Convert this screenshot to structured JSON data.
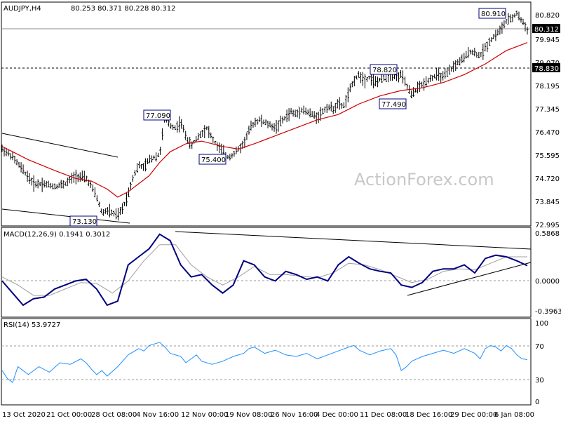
{
  "header": {
    "symbol": "AUDJPY,H4",
    "ohlc": "80.253 80.371 80.228 80.312",
    "macd_label": "MACD(12,26,9) 0.1941 0.3012",
    "rsi_label": "RSI(14) 53.9727"
  },
  "watermark": "ActionForex.com",
  "colors": {
    "bars": "#000000",
    "ma": "#cc0000",
    "macd": "#000080",
    "signal": "#a0a0a0",
    "rsi": "#1e90ff",
    "annotation_border": "#000080"
  },
  "chart_data": [
    {
      "type": "ohlc",
      "title": "AUDJPY,H4",
      "price_ticks": [
        "80.820",
        "79.945",
        "79.070",
        "78.195",
        "77.345",
        "76.470",
        "75.595",
        "74.720",
        "73.845",
        "72.995"
      ],
      "ylim": [
        72.995,
        80.82
      ],
      "current_price": "80.312",
      "level_line": "78.830",
      "annotations": [
        {
          "label": "80.910",
          "price": 80.91
        },
        {
          "label": "78.820",
          "price": 78.82
        },
        {
          "label": "77.490",
          "price": 77.49
        },
        {
          "label": "77.090",
          "price": 77.09
        },
        {
          "label": "75.400",
          "price": 75.4
        },
        {
          "label": "73.130",
          "price": 73.13
        }
      ],
      "path": [
        [
          0,
          75.8
        ],
        [
          0.02,
          75.5
        ],
        [
          0.04,
          75.0
        ],
        [
          0.06,
          74.5
        ],
        [
          0.08,
          74.5
        ],
        [
          0.1,
          74.4
        ],
        [
          0.12,
          74.5
        ],
        [
          0.14,
          74.8
        ],
        [
          0.16,
          74.7
        ],
        [
          0.17,
          74.4
        ],
        [
          0.18,
          74.0
        ],
        [
          0.19,
          73.4
        ],
        [
          0.2,
          73.5
        ],
        [
          0.22,
          73.3
        ],
        [
          0.23,
          73.6
        ],
        [
          0.24,
          74.1
        ],
        [
          0.25,
          74.8
        ],
        [
          0.26,
          75.2
        ],
        [
          0.27,
          75.1
        ],
        [
          0.28,
          75.4
        ],
        [
          0.29,
          75.5
        ],
        [
          0.3,
          75.6
        ],
        [
          0.305,
          76.3
        ],
        [
          0.31,
          77.0
        ],
        [
          0.32,
          76.7
        ],
        [
          0.33,
          76.6
        ],
        [
          0.34,
          76.8
        ],
        [
          0.35,
          76.3
        ],
        [
          0.36,
          75.9
        ],
        [
          0.37,
          76.2
        ],
        [
          0.38,
          76.4
        ],
        [
          0.39,
          76.6
        ],
        [
          0.4,
          76.2
        ],
        [
          0.41,
          75.9
        ],
        [
          0.42,
          75.7
        ],
        [
          0.43,
          75.5
        ],
        [
          0.44,
          75.6
        ],
        [
          0.45,
          75.8
        ],
        [
          0.46,
          76.0
        ],
        [
          0.47,
          76.5
        ],
        [
          0.48,
          76.8
        ],
        [
          0.49,
          76.9
        ],
        [
          0.5,
          76.8
        ],
        [
          0.51,
          76.7
        ],
        [
          0.52,
          76.6
        ],
        [
          0.53,
          76.8
        ],
        [
          0.54,
          77.0
        ],
        [
          0.55,
          77.2
        ],
        [
          0.56,
          77.1
        ],
        [
          0.57,
          77.3
        ],
        [
          0.58,
          77.2
        ],
        [
          0.59,
          77.1
        ],
        [
          0.6,
          77.0
        ],
        [
          0.61,
          77.2
        ],
        [
          0.62,
          77.4
        ],
        [
          0.63,
          77.3
        ],
        [
          0.64,
          77.5
        ],
        [
          0.65,
          77.4
        ],
        [
          0.66,
          77.9
        ],
        [
          0.67,
          78.4
        ],
        [
          0.68,
          78.6
        ],
        [
          0.69,
          78.4
        ],
        [
          0.7,
          78.5
        ],
        [
          0.71,
          78.3
        ],
        [
          0.72,
          78.4
        ],
        [
          0.73,
          78.5
        ],
        [
          0.74,
          78.6
        ],
        [
          0.75,
          78.5
        ],
        [
          0.76,
          78.6
        ],
        [
          0.77,
          78.2
        ],
        [
          0.78,
          77.8
        ],
        [
          0.79,
          78.1
        ],
        [
          0.8,
          78.2
        ],
        [
          0.81,
          78.4
        ],
        [
          0.82,
          78.5
        ],
        [
          0.83,
          78.6
        ],
        [
          0.84,
          78.5
        ],
        [
          0.85,
          78.7
        ],
        [
          0.86,
          78.9
        ],
        [
          0.87,
          79.1
        ],
        [
          0.88,
          79.2
        ],
        [
          0.89,
          79.5
        ],
        [
          0.9,
          79.4
        ],
        [
          0.91,
          79.3
        ],
        [
          0.92,
          79.6
        ],
        [
          0.93,
          79.9
        ],
        [
          0.94,
          80.1
        ],
        [
          0.95,
          80.3
        ],
        [
          0.96,
          80.6
        ],
        [
          0.97,
          80.7
        ],
        [
          0.98,
          80.9
        ],
        [
          0.99,
          80.6
        ],
        [
          1.0,
          80.3
        ]
      ],
      "ma": [
        [
          0,
          75.9
        ],
        [
          0.05,
          75.4
        ],
        [
          0.1,
          75.0
        ],
        [
          0.14,
          74.7
        ],
        [
          0.17,
          74.6
        ],
        [
          0.2,
          74.3
        ],
        [
          0.22,
          74.0
        ],
        [
          0.24,
          74.2
        ],
        [
          0.26,
          74.5
        ],
        [
          0.28,
          74.8
        ],
        [
          0.3,
          75.3
        ],
        [
          0.32,
          75.7
        ],
        [
          0.35,
          76.0
        ],
        [
          0.38,
          76.1
        ],
        [
          0.42,
          75.9
        ],
        [
          0.45,
          75.8
        ],
        [
          0.48,
          76.0
        ],
        [
          0.52,
          76.3
        ],
        [
          0.56,
          76.6
        ],
        [
          0.6,
          76.9
        ],
        [
          0.64,
          77.1
        ],
        [
          0.68,
          77.5
        ],
        [
          0.72,
          77.8
        ],
        [
          0.76,
          78.0
        ],
        [
          0.8,
          78.1
        ],
        [
          0.84,
          78.3
        ],
        [
          0.88,
          78.6
        ],
        [
          0.92,
          79.0
        ],
        [
          0.96,
          79.5
        ],
        [
          1.0,
          79.8
        ]
      ]
    },
    {
      "type": "line",
      "title": "MACD(12,26,9) 0.1941 0.3012",
      "y_ticks": [
        "0.5868",
        "0.0000",
        "-0.3963"
      ],
      "ylim": [
        -0.3963,
        0.5868
      ],
      "series": [
        {
          "name": "MACD",
          "values": [
            [
              0,
              0.0
            ],
            [
              0.02,
              -0.15
            ],
            [
              0.04,
              -0.3
            ],
            [
              0.06,
              -0.22
            ],
            [
              0.08,
              -0.2
            ],
            [
              0.1,
              -0.1
            ],
            [
              0.12,
              -0.05
            ],
            [
              0.14,
              0.0
            ],
            [
              0.16,
              0.02
            ],
            [
              0.18,
              -0.1
            ],
            [
              0.2,
              -0.3
            ],
            [
              0.22,
              -0.25
            ],
            [
              0.24,
              0.2
            ],
            [
              0.26,
              0.3
            ],
            [
              0.28,
              0.4
            ],
            [
              0.3,
              0.58
            ],
            [
              0.32,
              0.5
            ],
            [
              0.34,
              0.2
            ],
            [
              0.36,
              0.05
            ],
            [
              0.38,
              0.08
            ],
            [
              0.4,
              -0.05
            ],
            [
              0.42,
              -0.15
            ],
            [
              0.44,
              -0.05
            ],
            [
              0.46,
              0.25
            ],
            [
              0.48,
              0.2
            ],
            [
              0.5,
              0.05
            ],
            [
              0.52,
              0.0
            ],
            [
              0.54,
              0.12
            ],
            [
              0.56,
              0.08
            ],
            [
              0.58,
              0.02
            ],
            [
              0.6,
              0.05
            ],
            [
              0.62,
              0.0
            ],
            [
              0.64,
              0.2
            ],
            [
              0.66,
              0.3
            ],
            [
              0.68,
              0.22
            ],
            [
              0.7,
              0.15
            ],
            [
              0.72,
              0.12
            ],
            [
              0.74,
              0.1
            ],
            [
              0.76,
              -0.05
            ],
            [
              0.78,
              -0.08
            ],
            [
              0.8,
              -0.02
            ],
            [
              0.82,
              0.12
            ],
            [
              0.84,
              0.15
            ],
            [
              0.86,
              0.15
            ],
            [
              0.88,
              0.2
            ],
            [
              0.9,
              0.1
            ],
            [
              0.92,
              0.28
            ],
            [
              0.94,
              0.32
            ],
            [
              0.96,
              0.3
            ],
            [
              0.98,
              0.25
            ],
            [
              1.0,
              0.19
            ]
          ]
        },
        {
          "name": "Signal",
          "values": [
            [
              0,
              0.05
            ],
            [
              0.03,
              -0.05
            ],
            [
              0.06,
              -0.18
            ],
            [
              0.09,
              -0.18
            ],
            [
              0.12,
              -0.1
            ],
            [
              0.15,
              -0.02
            ],
            [
              0.18,
              -0.03
            ],
            [
              0.21,
              -0.15
            ],
            [
              0.24,
              0.0
            ],
            [
              0.27,
              0.25
            ],
            [
              0.3,
              0.45
            ],
            [
              0.33,
              0.45
            ],
            [
              0.36,
              0.2
            ],
            [
              0.39,
              0.05
            ],
            [
              0.42,
              -0.05
            ],
            [
              0.45,
              0.05
            ],
            [
              0.48,
              0.18
            ],
            [
              0.51,
              0.08
            ],
            [
              0.54,
              0.08
            ],
            [
              0.57,
              0.06
            ],
            [
              0.6,
              0.04
            ],
            [
              0.63,
              0.1
            ],
            [
              0.66,
              0.22
            ],
            [
              0.69,
              0.2
            ],
            [
              0.72,
              0.14
            ],
            [
              0.75,
              0.06
            ],
            [
              0.78,
              -0.02
            ],
            [
              0.81,
              0.02
            ],
            [
              0.84,
              0.12
            ],
            [
              0.87,
              0.15
            ],
            [
              0.9,
              0.14
            ],
            [
              0.93,
              0.22
            ],
            [
              0.96,
              0.3
            ],
            [
              1.0,
              0.3
            ]
          ]
        }
      ]
    },
    {
      "type": "line",
      "title": "RSI(14) 53.9727",
      "y_ticks": [
        "100",
        "70",
        "30",
        "0"
      ],
      "ylim": [
        0,
        100
      ],
      "series": [
        {
          "name": "RSI",
          "values": [
            [
              0,
              40
            ],
            [
              0.01,
              30
            ],
            [
              0.02,
              25
            ],
            [
              0.03,
              45
            ],
            [
              0.05,
              35
            ],
            [
              0.07,
              45
            ],
            [
              0.09,
              38
            ],
            [
              0.11,
              50
            ],
            [
              0.13,
              48
            ],
            [
              0.15,
              55
            ],
            [
              0.16,
              50
            ],
            [
              0.17,
              42
            ],
            [
              0.18,
              35
            ],
            [
              0.19,
              40
            ],
            [
              0.2,
              33
            ],
            [
              0.22,
              45
            ],
            [
              0.24,
              60
            ],
            [
              0.26,
              68
            ],
            [
              0.27,
              65
            ],
            [
              0.28,
              72
            ],
            [
              0.3,
              76
            ],
            [
              0.31,
              70
            ],
            [
              0.32,
              62
            ],
            [
              0.34,
              58
            ],
            [
              0.35,
              50
            ],
            [
              0.36,
              55
            ],
            [
              0.37,
              60
            ],
            [
              0.38,
              52
            ],
            [
              0.4,
              48
            ],
            [
              0.42,
              52
            ],
            [
              0.44,
              58
            ],
            [
              0.46,
              62
            ],
            [
              0.47,
              68
            ],
            [
              0.48,
              70
            ],
            [
              0.5,
              62
            ],
            [
              0.52,
              66
            ],
            [
              0.54,
              60
            ],
            [
              0.56,
              58
            ],
            [
              0.58,
              62
            ],
            [
              0.6,
              55
            ],
            [
              0.62,
              60
            ],
            [
              0.64,
              65
            ],
            [
              0.66,
              70
            ],
            [
              0.67,
              72
            ],
            [
              0.68,
              66
            ],
            [
              0.7,
              60
            ],
            [
              0.72,
              65
            ],
            [
              0.74,
              68
            ],
            [
              0.75,
              60
            ],
            [
              0.76,
              40
            ],
            [
              0.77,
              45
            ],
            [
              0.78,
              52
            ],
            [
              0.8,
              58
            ],
            [
              0.82,
              62
            ],
            [
              0.84,
              66
            ],
            [
              0.86,
              62
            ],
            [
              0.88,
              68
            ],
            [
              0.9,
              62
            ],
            [
              0.91,
              55
            ],
            [
              0.92,
              68
            ],
            [
              0.93,
              72
            ],
            [
              0.94,
              70
            ],
            [
              0.95,
              65
            ],
            [
              0.96,
              72
            ],
            [
              0.97,
              68
            ],
            [
              0.98,
              60
            ],
            [
              0.99,
              55
            ],
            [
              1.0,
              54
            ]
          ]
        }
      ]
    }
  ],
  "x_labels": [
    "13 Oct 2020",
    "21 Oct 00:00",
    "28 Oct 08:00",
    "4 Nov 16:00",
    "12 Nov 00:00",
    "19 Nov 08:00",
    "26 Nov 16:00",
    "4 Dec 00:00",
    "11 Dec 08:00",
    "18 Dec 16:00",
    "29 Dec 00:00",
    "6 Jan 08:00"
  ]
}
